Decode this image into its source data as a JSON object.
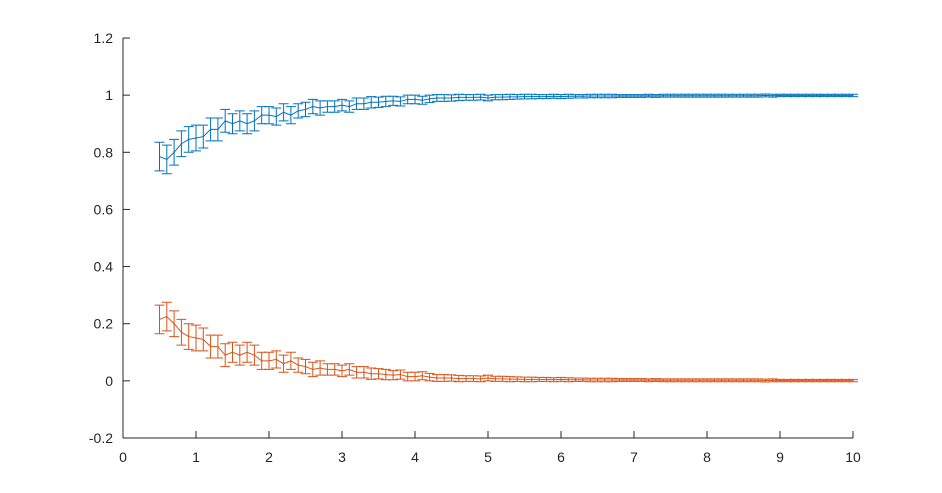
{
  "chart_data": {
    "type": "line",
    "title": "",
    "xlabel": "",
    "ylabel": "",
    "xlim": [
      0,
      10
    ],
    "ylim": [
      -0.2,
      1.2
    ],
    "xticks": [
      0,
      1,
      2,
      3,
      4,
      5,
      6,
      7,
      8,
      9,
      10
    ],
    "yticks": [
      -0.2,
      0,
      0.2,
      0.4,
      0.6,
      0.8,
      1,
      1.2
    ],
    "xtick_labels": [
      "0",
      "1",
      "2",
      "3",
      "4",
      "5",
      "6",
      "7",
      "8",
      "9",
      "10"
    ],
    "ytick_labels": [
      "-0.2",
      "0",
      "0.2",
      "0.4",
      "0.6",
      "0.8",
      "1",
      "1.2"
    ],
    "grid": false,
    "legend": "none",
    "error_bars": true,
    "x": [
      0.5,
      0.6,
      0.7,
      0.8,
      0.9,
      1.0,
      1.1,
      1.2,
      1.3,
      1.4,
      1.5,
      1.6,
      1.7,
      1.8,
      1.9,
      2.0,
      2.1,
      2.2,
      2.3,
      2.4,
      2.5,
      2.6,
      2.7,
      2.8,
      2.9,
      3.0,
      3.1,
      3.2,
      3.3,
      3.4,
      3.5,
      3.6,
      3.7,
      3.8,
      3.9,
      4.0,
      4.1,
      4.2,
      4.3,
      4.4,
      4.5,
      4.6,
      4.7,
      4.8,
      4.9,
      5.0,
      5.1,
      5.2,
      5.3,
      5.4,
      5.5,
      5.6,
      5.7,
      5.8,
      5.9,
      6.0,
      6.1,
      6.2,
      6.3,
      6.4,
      6.5,
      6.6,
      6.7,
      6.8,
      6.9,
      7.0,
      7.1,
      7.2,
      7.3,
      7.4,
      7.5,
      7.6,
      7.7,
      7.8,
      7.9,
      8.0,
      8.1,
      8.2,
      8.3,
      8.4,
      8.5,
      8.6,
      8.7,
      8.8,
      8.9,
      9.0,
      9.1,
      9.2,
      9.3,
      9.4,
      9.5,
      9.6,
      9.7,
      9.8,
      9.9,
      10.0
    ],
    "series": [
      {
        "color": "#0072BD",
        "values": [
          0.785,
          0.775,
          0.8,
          0.83,
          0.845,
          0.85,
          0.855,
          0.88,
          0.88,
          0.91,
          0.9,
          0.91,
          0.9,
          0.91,
          0.93,
          0.93,
          0.925,
          0.94,
          0.93,
          0.945,
          0.95,
          0.96,
          0.955,
          0.96,
          0.96,
          0.965,
          0.96,
          0.97,
          0.97,
          0.975,
          0.975,
          0.978,
          0.98,
          0.978,
          0.985,
          0.985,
          0.982,
          0.987,
          0.99,
          0.99,
          0.99,
          0.992,
          0.992,
          0.992,
          0.993,
          0.99,
          0.993,
          0.993,
          0.994,
          0.994,
          0.995,
          0.995,
          0.995,
          0.995,
          0.996,
          0.995,
          0.996,
          0.996,
          0.996,
          0.997,
          0.997,
          0.997,
          0.997,
          0.997,
          0.997,
          0.997,
          0.997,
          0.998,
          0.997,
          0.998,
          0.998,
          0.998,
          0.998,
          0.998,
          0.998,
          0.998,
          0.998,
          0.998,
          0.998,
          0.998,
          0.998,
          0.998,
          0.998,
          0.999,
          0.998,
          0.999,
          0.999,
          0.999,
          0.999,
          0.999,
          0.999,
          0.999,
          0.999,
          0.999,
          0.999,
          0.999
        ],
        "errors": [
          0.05,
          0.05,
          0.045,
          0.045,
          0.045,
          0.045,
          0.04,
          0.04,
          0.04,
          0.04,
          0.035,
          0.035,
          0.035,
          0.035,
          0.03,
          0.03,
          0.03,
          0.03,
          0.03,
          0.025,
          0.025,
          0.025,
          0.025,
          0.02,
          0.02,
          0.02,
          0.02,
          0.02,
          0.02,
          0.02,
          0.018,
          0.018,
          0.016,
          0.016,
          0.015,
          0.015,
          0.014,
          0.013,
          0.012,
          0.012,
          0.011,
          0.011,
          0.01,
          0.01,
          0.01,
          0.01,
          0.009,
          0.009,
          0.009,
          0.008,
          0.008,
          0.008,
          0.007,
          0.007,
          0.007,
          0.007,
          0.007,
          0.006,
          0.006,
          0.006,
          0.006,
          0.006,
          0.006,
          0.005,
          0.005,
          0.005,
          0.005,
          0.005,
          0.005,
          0.005,
          0.005,
          0.005,
          0.005,
          0.005,
          0.005,
          0.005,
          0.005,
          0.005,
          0.005,
          0.005,
          0.005,
          0.005,
          0.005,
          0.005,
          0.005,
          0.004,
          0.004,
          0.004,
          0.004,
          0.004,
          0.004,
          0.004,
          0.004,
          0.004,
          0.004,
          0.004
        ]
      },
      {
        "color": "#D95319",
        "values": [
          0.215,
          0.225,
          0.2,
          0.17,
          0.155,
          0.15,
          0.145,
          0.12,
          0.12,
          0.09,
          0.1,
          0.09,
          0.1,
          0.09,
          0.07,
          0.07,
          0.075,
          0.06,
          0.07,
          0.055,
          0.05,
          0.04,
          0.045,
          0.04,
          0.04,
          0.035,
          0.04,
          0.03,
          0.03,
          0.025,
          0.025,
          0.022,
          0.02,
          0.022,
          0.015,
          0.015,
          0.018,
          0.013,
          0.01,
          0.01,
          0.01,
          0.008,
          0.008,
          0.008,
          0.007,
          0.01,
          0.007,
          0.007,
          0.006,
          0.006,
          0.005,
          0.005,
          0.005,
          0.005,
          0.004,
          0.005,
          0.004,
          0.004,
          0.004,
          0.003,
          0.003,
          0.003,
          0.003,
          0.003,
          0.003,
          0.003,
          0.003,
          0.002,
          0.003,
          0.002,
          0.002,
          0.002,
          0.002,
          0.002,
          0.002,
          0.002,
          0.002,
          0.002,
          0.002,
          0.002,
          0.002,
          0.002,
          0.002,
          0.001,
          0.002,
          0.001,
          0.001,
          0.001,
          0.001,
          0.001,
          0.001,
          0.001,
          0.001,
          0.001,
          0.001,
          0.001
        ],
        "errors": [
          0.05,
          0.05,
          0.045,
          0.045,
          0.045,
          0.045,
          0.04,
          0.04,
          0.04,
          0.04,
          0.035,
          0.035,
          0.035,
          0.035,
          0.03,
          0.03,
          0.03,
          0.03,
          0.03,
          0.025,
          0.025,
          0.025,
          0.025,
          0.02,
          0.02,
          0.02,
          0.02,
          0.02,
          0.02,
          0.02,
          0.018,
          0.018,
          0.016,
          0.016,
          0.015,
          0.015,
          0.014,
          0.013,
          0.012,
          0.012,
          0.011,
          0.011,
          0.01,
          0.01,
          0.01,
          0.01,
          0.009,
          0.009,
          0.009,
          0.008,
          0.008,
          0.008,
          0.007,
          0.007,
          0.007,
          0.007,
          0.007,
          0.006,
          0.006,
          0.006,
          0.006,
          0.006,
          0.006,
          0.005,
          0.005,
          0.005,
          0.005,
          0.005,
          0.005,
          0.005,
          0.005,
          0.005,
          0.005,
          0.005,
          0.005,
          0.005,
          0.005,
          0.005,
          0.005,
          0.005,
          0.005,
          0.005,
          0.005,
          0.005,
          0.005,
          0.004,
          0.004,
          0.004,
          0.004,
          0.004,
          0.004,
          0.004,
          0.004,
          0.004,
          0.004,
          0.004
        ]
      }
    ]
  }
}
